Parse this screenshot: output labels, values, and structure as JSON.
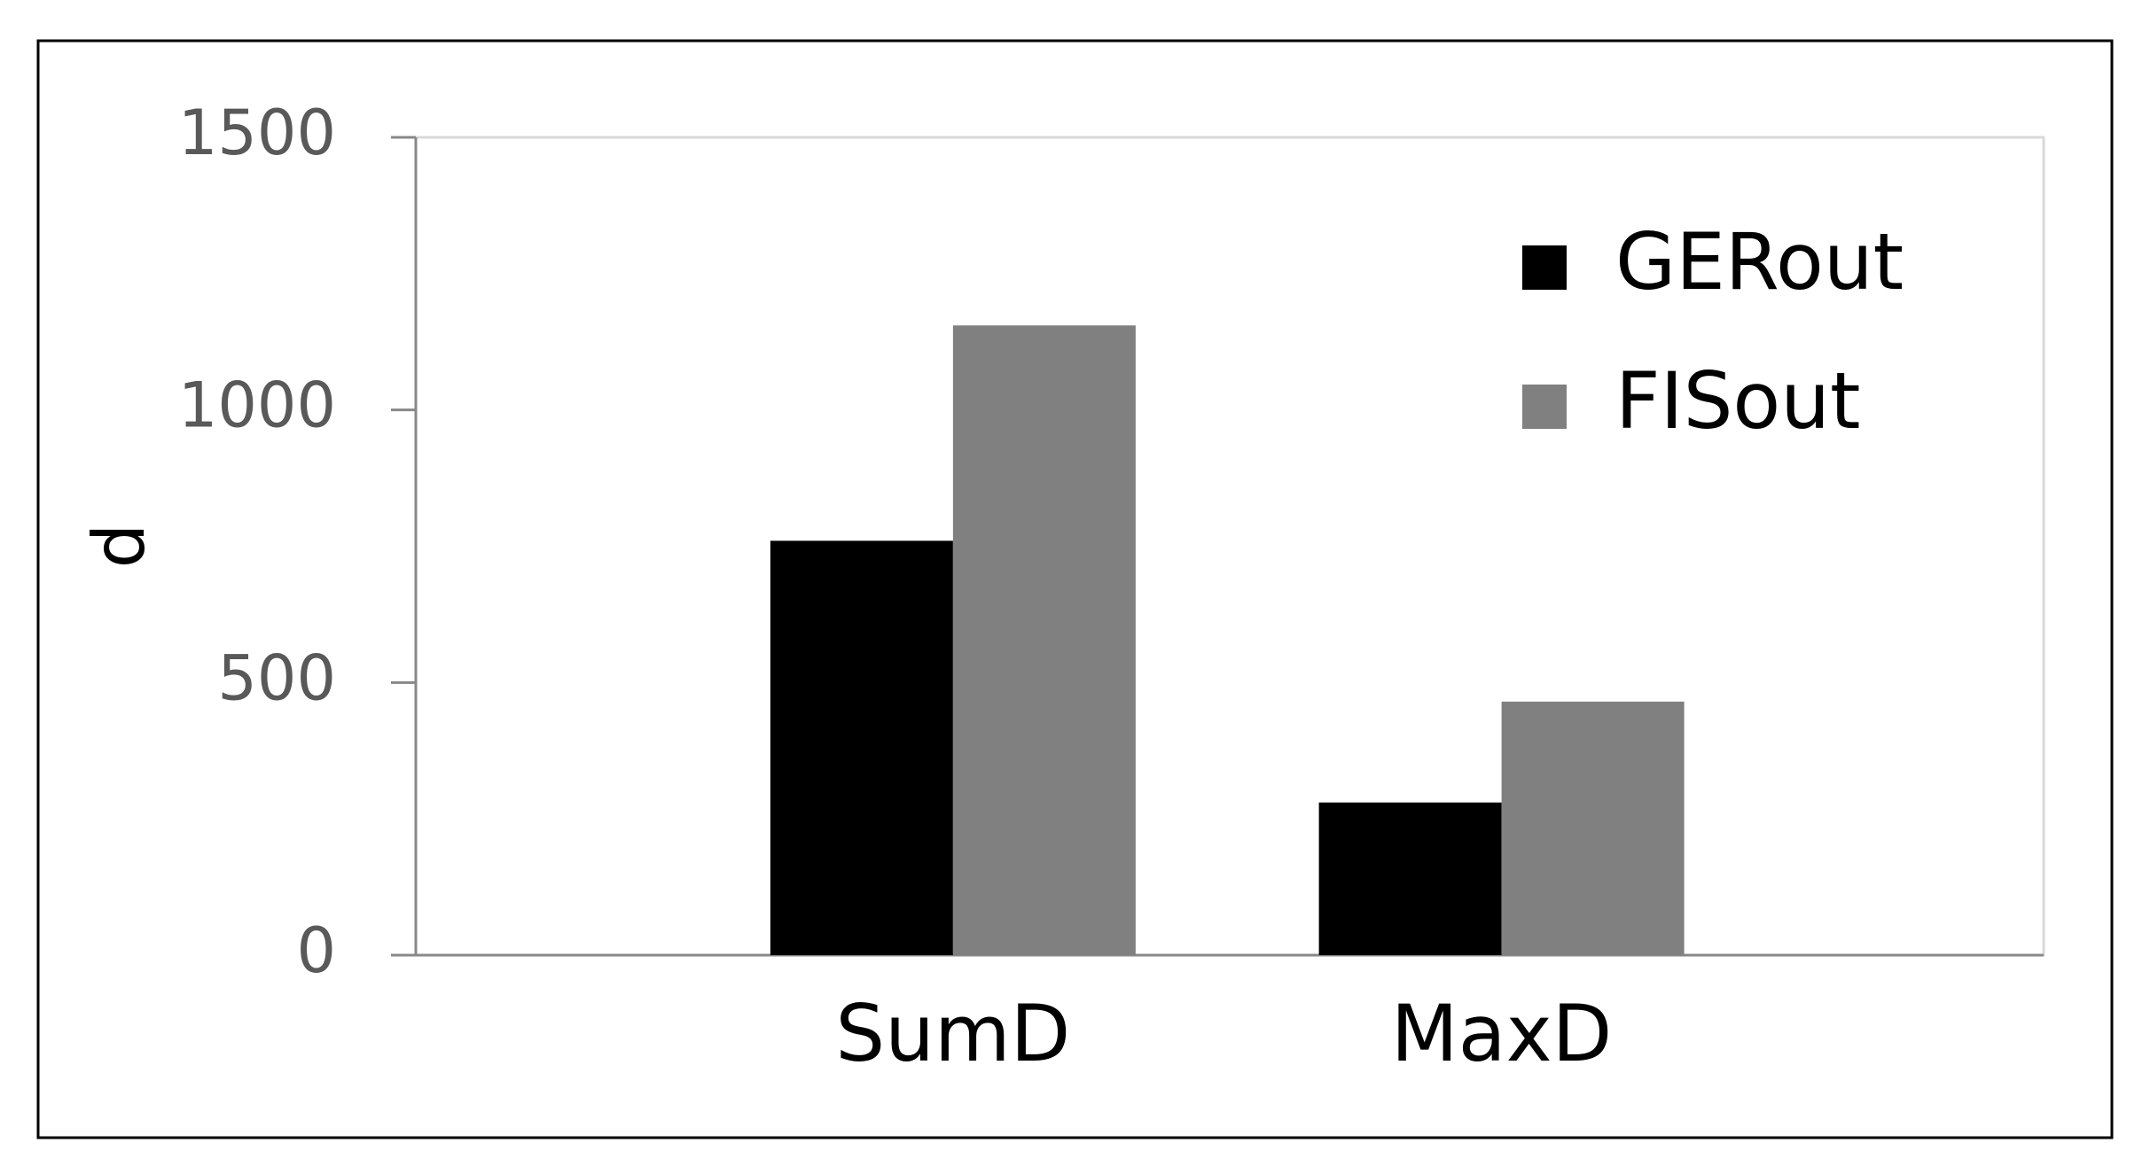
{
  "chart_data": {
    "type": "bar",
    "y_label": "d",
    "categories": [
      "SumD",
      "MaxD"
    ],
    "series": [
      {
        "name": "GERout",
        "color": "#000000",
        "values": [
          760,
          280
        ]
      },
      {
        "name": "FISout",
        "color": "#808080",
        "values": [
          1155,
          465
        ]
      }
    ],
    "ylim": [
      0,
      1500
    ],
    "yticks": [
      0,
      500,
      1000,
      1500
    ],
    "legend": "upper right"
  }
}
